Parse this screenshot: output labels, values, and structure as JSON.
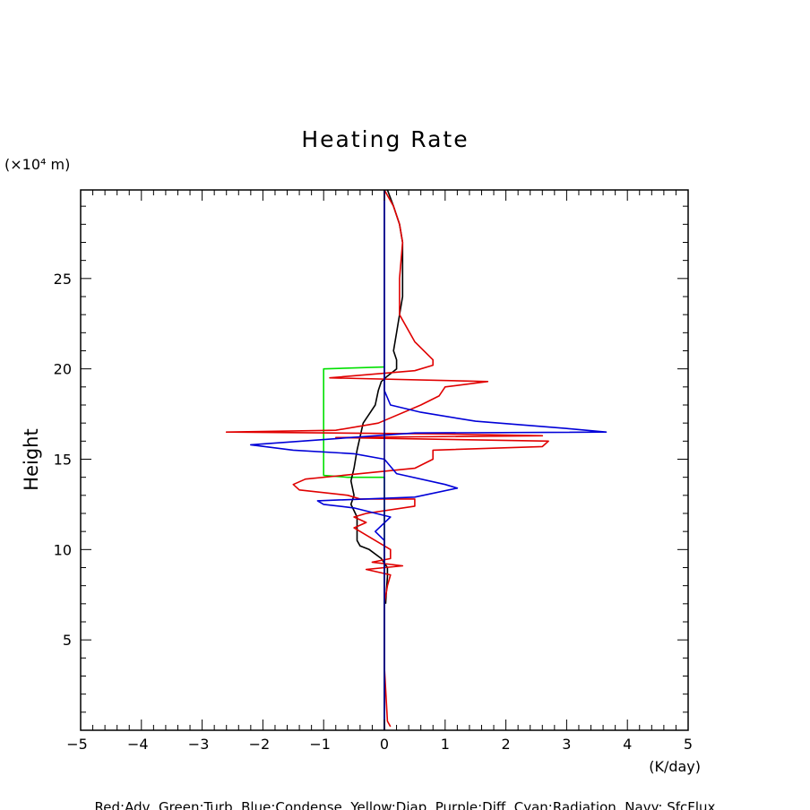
{
  "chart_data": {
    "type": "line",
    "title": "Heating Rate",
    "ylabel": "Height",
    "y_unit_label": "(×10⁴ m)",
    "xlabel": "(K/day)",
    "xlim": [
      -5,
      5
    ],
    "ylim": [
      0,
      29.9
    ],
    "x_ticks": [
      -5,
      -4,
      -3,
      -2,
      -1,
      0,
      1,
      2,
      3,
      4,
      5
    ],
    "y_ticks": [
      5,
      10,
      15,
      20,
      25
    ],
    "grid": false,
    "legend_text": "Red:Adv, Green:Turb, Blue:Condense, Yellow:Diap, Purple:Diff, Cyan:Radiation, Navy: SfcFlux",
    "series": [
      {
        "color": "#00e000",
        "points": [
          [
            0,
            20.1
          ],
          [
            -1.0,
            20.0
          ],
          [
            -1.0,
            14.1
          ],
          [
            -0.6,
            14.0
          ],
          [
            0,
            14.0
          ],
          [
            0,
            0
          ]
        ]
      },
      {
        "color": "#000000",
        "points": [
          [
            0.05,
            29.9
          ],
          [
            0.15,
            29.0
          ],
          [
            0.25,
            28.0
          ],
          [
            0.3,
            27.0
          ],
          [
            0.3,
            25.0
          ],
          [
            0.3,
            24.0
          ],
          [
            0.25,
            23.0
          ],
          [
            0.2,
            22.0
          ],
          [
            0.15,
            21.0
          ],
          [
            0.2,
            20.5
          ],
          [
            0.2,
            20.0
          ],
          [
            0.05,
            19.6
          ],
          [
            -0.05,
            19.3
          ],
          [
            -0.1,
            18.8
          ],
          [
            -0.15,
            18.0
          ],
          [
            -0.25,
            17.5
          ],
          [
            -0.35,
            17.0
          ],
          [
            -0.45,
            15.5
          ],
          [
            -0.5,
            14.5
          ],
          [
            -0.55,
            13.8
          ],
          [
            -0.5,
            13.0
          ],
          [
            -0.55,
            12.5
          ],
          [
            -0.45,
            11.8
          ],
          [
            -0.45,
            11.0
          ],
          [
            -0.45,
            10.5
          ],
          [
            -0.4,
            10.2
          ],
          [
            -0.25,
            10.0
          ],
          [
            -0.05,
            9.5
          ],
          [
            0.05,
            9.0
          ],
          [
            0.05,
            8.5
          ],
          [
            0.03,
            7.5
          ],
          [
            0.02,
            7.0
          ]
        ]
      },
      {
        "color": "#e00000",
        "points": [
          [
            0,
            29.9
          ],
          [
            0.15,
            29.0
          ],
          [
            0.25,
            28.0
          ],
          [
            0.3,
            27.0
          ],
          [
            0.25,
            25.0
          ],
          [
            0.25,
            23.0
          ],
          [
            0.5,
            21.5
          ],
          [
            0.8,
            20.5
          ],
          [
            0.8,
            20.2
          ],
          [
            0.5,
            19.9
          ],
          [
            -0.9,
            19.5
          ],
          [
            1.7,
            19.3
          ],
          [
            1.0,
            19.0
          ],
          [
            0.9,
            18.5
          ],
          [
            0.6,
            18.0
          ],
          [
            -0.1,
            17.0
          ],
          [
            -0.8,
            16.6
          ],
          [
            -2.6,
            16.5
          ],
          [
            1.0,
            16.4
          ],
          [
            2.6,
            16.3
          ],
          [
            -0.8,
            16.2
          ],
          [
            2.7,
            16.0
          ],
          [
            2.6,
            15.7
          ],
          [
            0.8,
            15.5
          ],
          [
            0.8,
            15.0
          ],
          [
            0.5,
            14.5
          ],
          [
            -1.3,
            13.9
          ],
          [
            -1.5,
            13.6
          ],
          [
            -1.4,
            13.3
          ],
          [
            -0.6,
            13.0
          ],
          [
            -0.4,
            12.8
          ],
          [
            0.5,
            12.8
          ],
          [
            0.5,
            12.4
          ],
          [
            -0.3,
            12.0
          ],
          [
            -0.5,
            11.8
          ],
          [
            -0.3,
            11.5
          ],
          [
            -0.5,
            11.2
          ],
          [
            -0.3,
            10.8
          ],
          [
            0.1,
            10.0
          ],
          [
            0.1,
            9.5
          ],
          [
            -0.2,
            9.3
          ],
          [
            0.3,
            9.1
          ],
          [
            -0.3,
            8.9
          ],
          [
            0.1,
            8.6
          ],
          [
            0.05,
            8.0
          ],
          [
            0,
            7.0
          ],
          [
            0,
            3.5
          ],
          [
            0.05,
            0.5
          ],
          [
            0.1,
            0.2
          ]
        ]
      },
      {
        "color": "#0000d8",
        "points": [
          [
            0,
            29.9
          ],
          [
            0,
            18.8
          ],
          [
            0.1,
            18.0
          ],
          [
            0.6,
            17.6
          ],
          [
            1.5,
            17.1
          ],
          [
            3.0,
            16.7
          ],
          [
            3.65,
            16.5
          ],
          [
            0.5,
            16.45
          ],
          [
            -2.2,
            15.8
          ],
          [
            -1.5,
            15.5
          ],
          [
            -0.5,
            15.3
          ],
          [
            0,
            15.0
          ],
          [
            0.2,
            14.2
          ],
          [
            1.0,
            13.6
          ],
          [
            1.2,
            13.4
          ],
          [
            0.5,
            12.9
          ],
          [
            -1.1,
            12.7
          ],
          [
            -1.0,
            12.5
          ],
          [
            -0.5,
            12.3
          ],
          [
            0.1,
            11.8
          ],
          [
            -0.15,
            11.0
          ],
          [
            0,
            10.5
          ],
          [
            0,
            0
          ]
        ]
      },
      {
        "color": "#000080",
        "points": [
          [
            0,
            29.9
          ],
          [
            0,
            0
          ]
        ]
      }
    ]
  }
}
